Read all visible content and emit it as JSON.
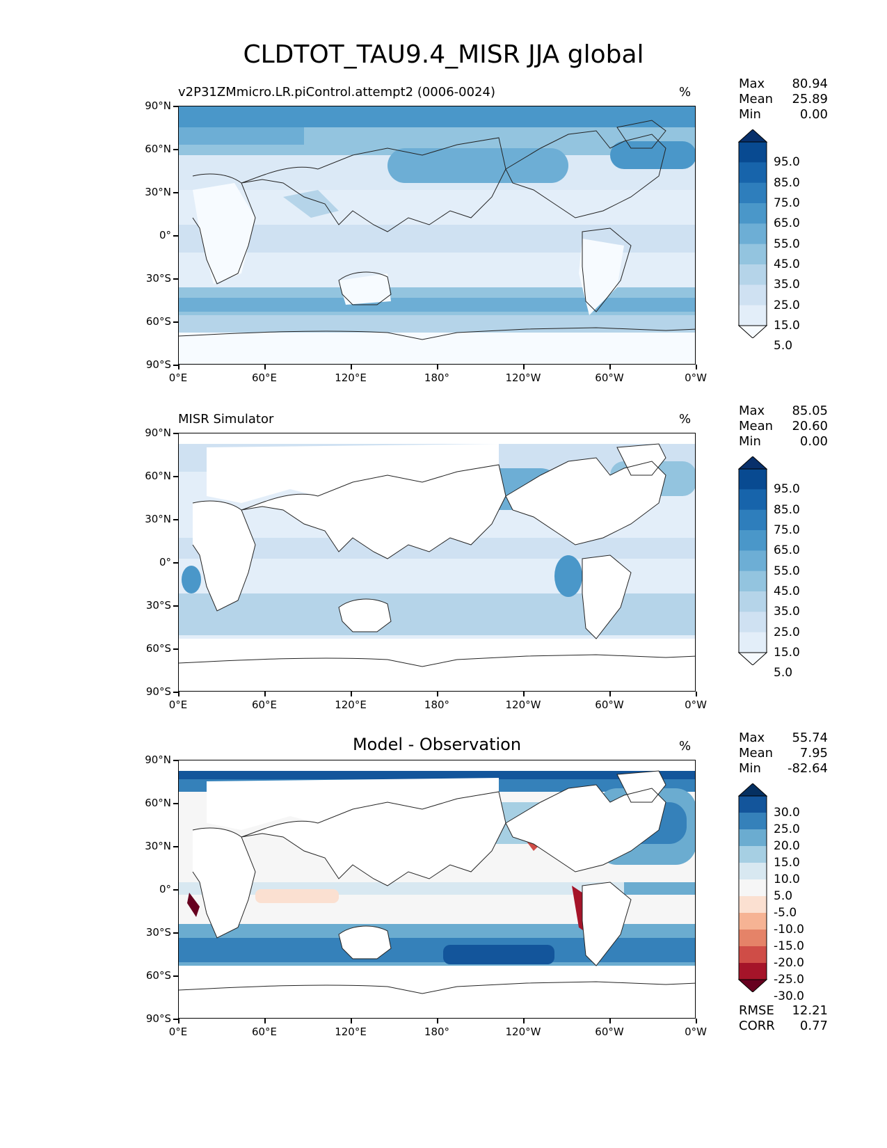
{
  "title": "CLDTOT_TAU9.4_MISR JJA global",
  "lat_ticks": [
    "90°N",
    "60°N",
    "30°N",
    "0°",
    "30°S",
    "60°S",
    "90°S"
  ],
  "lon_ticks": [
    "0°E",
    "60°E",
    "120°E",
    "180°",
    "120°W",
    "60°W",
    "0°W"
  ],
  "seq_colors": [
    "#f7fbff",
    "#e3eef9",
    "#cfe1f2",
    "#b5d4e9",
    "#93c4df",
    "#6daed5",
    "#4a97c9",
    "#2e7ebc",
    "#1764ab",
    "#084a91",
    "#08306b"
  ],
  "div_colors": [
    "#67001f",
    "#a51429",
    "#cf4d47",
    "#e58368",
    "#f6b394",
    "#fbe0d1",
    "#f6f6f6",
    "#d8e8f1",
    "#a6cfe3",
    "#6bacd0",
    "#3581ba",
    "#13559b",
    "#053061"
  ],
  "panels": [
    {
      "title": "v2P31ZMmicro.LR.piControl.attempt2 (0006-0024)",
      "center_title": "",
      "units": "%",
      "stats": [
        {
          "label": "Max",
          "value": "80.94"
        },
        {
          "label": "Mean",
          "value": "25.89"
        },
        {
          "label": "Min",
          "value": "0.00"
        }
      ],
      "colorbar_labels": [
        "95.0",
        "85.0",
        "75.0",
        "65.0",
        "55.0",
        "45.0",
        "35.0",
        "25.0",
        "15.0",
        "5.0"
      ],
      "extra_stats": []
    },
    {
      "title": "MISR Simulator",
      "center_title": "",
      "units": "%",
      "stats": [
        {
          "label": "Max",
          "value": "85.05"
        },
        {
          "label": "Mean",
          "value": "20.60"
        },
        {
          "label": "Min",
          "value": "0.00"
        }
      ],
      "colorbar_labels": [
        "95.0",
        "85.0",
        "75.0",
        "65.0",
        "55.0",
        "45.0",
        "35.0",
        "25.0",
        "15.0",
        "5.0"
      ],
      "extra_stats": []
    },
    {
      "title": "",
      "center_title": "Model - Observation",
      "units": "%",
      "stats": [
        {
          "label": "Max",
          "value": "55.74"
        },
        {
          "label": "Mean",
          "value": "7.95"
        },
        {
          "label": "Min",
          "value": "-82.64"
        }
      ],
      "colorbar_labels": [
        "30.0",
        "25.0",
        "20.0",
        "15.0",
        "10.0",
        "5.0",
        "-5.0",
        "-10.0",
        "-15.0",
        "-20.0",
        "-25.0",
        "-30.0"
      ],
      "extra_stats": [
        {
          "label": "RMSE",
          "value": "12.21"
        },
        {
          "label": "CORR",
          "value": "0.77"
        }
      ]
    }
  ]
}
